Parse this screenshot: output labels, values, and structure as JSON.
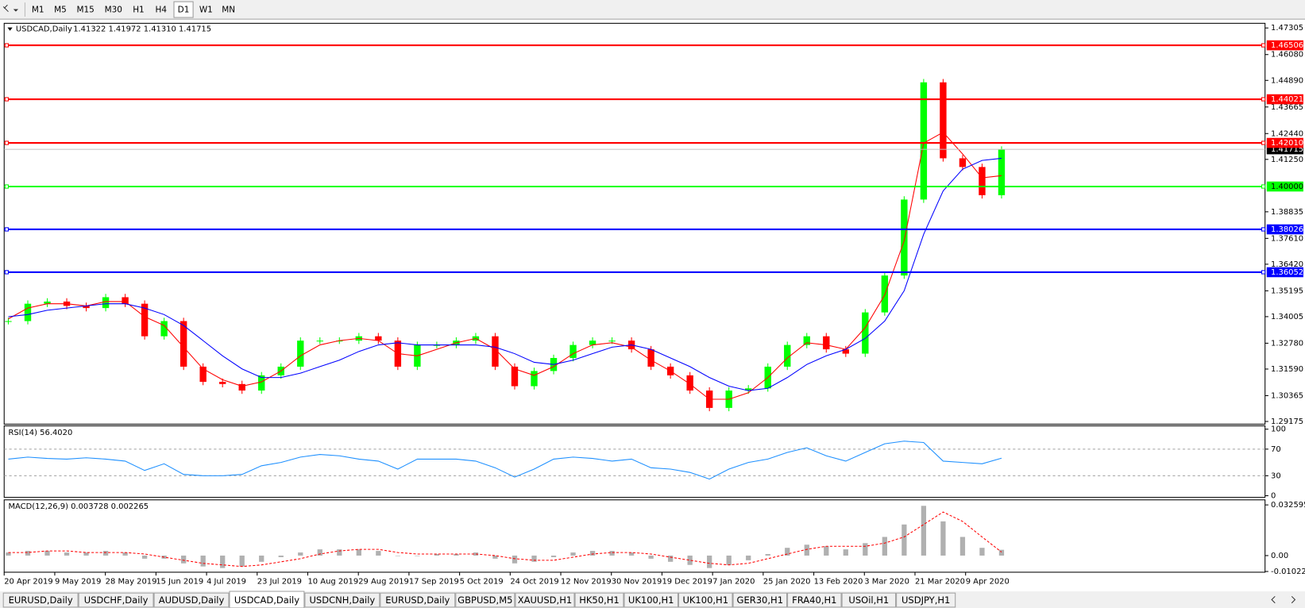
{
  "toolbar": {
    "timeframes": [
      "M1",
      "M5",
      "M15",
      "M30",
      "H1",
      "H4",
      "D1",
      "W1",
      "MN"
    ],
    "active_timeframe": "D1"
  },
  "tabs": {
    "items": [
      "EURUSD,Daily",
      "USDCHF,Daily",
      "AUDUSD,Daily",
      "USDCAD,Daily",
      "USDCNH,Daily",
      "EURUSD,Daily",
      "GBPUSD,M5",
      "XAUUSD,H1",
      "HK50,H1",
      "UK100,H1",
      "UK100,H1",
      "GER30,H1",
      "FRA40,H1",
      "USOil,H1",
      "USDJPY,H1"
    ],
    "active": "USDCAD,Daily"
  },
  "chart_data": [
    {
      "type": "candlestick",
      "symbol": "USDCAD,Daily",
      "ohlc": "1.41322 1.41972 1.41310 1.41715",
      "x_labels": [
        "20 Apr 2019",
        "9 May 2019",
        "28 May 2019",
        "15 Jun 2019",
        "4 Jul 2019",
        "23 Jul 2019",
        "10 Aug 2019",
        "29 Aug 2019",
        "17 Sep 2019",
        "5 Oct 2019",
        "24 Oct 2019",
        "12 Nov 2019",
        "30 Nov 2019",
        "19 Dec 2019",
        "7 Jan 2020",
        "25 Jan 2020",
        "13 Feb 2020",
        "3 Mar 2020",
        "21 Mar 2020",
        "9 Apr 2020"
      ],
      "closes": [
        1.338,
        1.346,
        1.347,
        1.345,
        1.344,
        1.349,
        1.346,
        1.331,
        1.338,
        1.317,
        1.31,
        1.309,
        1.306,
        1.313,
        1.317,
        1.329,
        1.329,
        1.329,
        1.331,
        1.329,
        1.317,
        1.327,
        1.327,
        1.329,
        1.331,
        1.317,
        1.308,
        1.315,
        1.321,
        1.327,
        1.329,
        1.329,
        1.325,
        1.317,
        1.313,
        1.306,
        1.298,
        1.306,
        1.307,
        1.317,
        1.327,
        1.331,
        1.325,
        1.323,
        1.342,
        1.359,
        1.394,
        1.448,
        1.413,
        1.409,
        1.396,
        1.417
      ],
      "up_color": "#00ff00",
      "down_color": "#ff0000",
      "series": [
        {
          "color": "#ff0000",
          "values": [
            1.339,
            1.344,
            1.346,
            1.346,
            1.345,
            1.347,
            1.347,
            1.34,
            1.336,
            1.326,
            1.316,
            1.311,
            1.308,
            1.31,
            1.315,
            1.322,
            1.327,
            1.329,
            1.33,
            1.329,
            1.323,
            1.322,
            1.325,
            1.328,
            1.33,
            1.325,
            1.316,
            1.313,
            1.317,
            1.323,
            1.327,
            1.328,
            1.326,
            1.32,
            1.315,
            1.309,
            1.302,
            1.302,
            1.305,
            1.312,
            1.321,
            1.328,
            1.327,
            1.325,
            1.335,
            1.35,
            1.375,
            1.42,
            1.425,
            1.415,
            1.404,
            1.405
          ]
        },
        {
          "color": "#0000ff",
          "values": [
            1.34,
            1.341,
            1.343,
            1.344,
            1.345,
            1.346,
            1.346,
            1.344,
            1.341,
            1.336,
            1.329,
            1.322,
            1.316,
            1.312,
            1.312,
            1.314,
            1.317,
            1.32,
            1.324,
            1.327,
            1.328,
            1.327,
            1.327,
            1.327,
            1.327,
            1.326,
            1.323,
            1.319,
            1.318,
            1.32,
            1.323,
            1.326,
            1.327,
            1.325,
            1.321,
            1.317,
            1.312,
            1.308,
            1.306,
            1.307,
            1.312,
            1.318,
            1.322,
            1.325,
            1.33,
            1.338,
            1.352,
            1.378,
            1.398,
            1.408,
            1.412,
            1.413
          ]
        }
      ],
      "ylim": [
        1.2905,
        1.4752
      ],
      "yticks": [
        1.47305,
        {
          "value": 1.4608,
          "label": "1.46080"
        },
        {
          "value": 1.4489,
          "label": "1.44890"
        },
        1.43665,
        {
          "value": 1.4244,
          "label": "1.42440"
        },
        {
          "value": 1.4125,
          "label": "1.41250"
        },
        1.38835,
        {
          "value": 1.3761,
          "label": "1.37610"
        },
        {
          "value": 1.3642,
          "label": "1.36420"
        },
        1.35195,
        1.34005,
        {
          "value": 1.3278,
          "label": "1.32780"
        },
        {
          "value": 1.3159,
          "label": "1.31590"
        },
        1.30365,
        1.29175
      ],
      "levels": [
        {
          "value": 1.46506,
          "color": "#ff0000"
        },
        {
          "value": 1.44021,
          "color": "#ff0000"
        },
        {
          "value": 1.4201,
          "label": "1.42010",
          "color": "#ff0000"
        },
        {
          "value": 1.4,
          "label": "1.40000",
          "color": "#00ff00"
        },
        {
          "value": 1.38026,
          "color": "#0000ff"
        },
        {
          "value": 1.36052,
          "color": "#0000ff"
        }
      ],
      "last_price": 1.41715
    },
    {
      "type": "line",
      "title": "RSI(14) 56.4020",
      "color": "#1e90ff",
      "values": [
        55,
        58,
        56,
        55,
        57,
        55,
        52,
        38,
        48,
        32,
        30,
        30,
        32,
        45,
        50,
        58,
        62,
        60,
        55,
        52,
        40,
        55,
        55,
        55,
        52,
        42,
        28,
        40,
        55,
        58,
        56,
        52,
        55,
        42,
        40,
        35,
        25,
        40,
        50,
        55,
        65,
        72,
        60,
        52,
        65,
        78,
        82,
        80,
        52,
        50,
        48,
        56.402
      ],
      "ylim": [
        0,
        100
      ],
      "yticks": [
        100,
        70,
        30,
        0
      ],
      "levels": [
        70,
        30
      ]
    },
    {
      "type": "macd",
      "title": "MACD(12,26,9) 0.003728 0.002265",
      "color": "#b0b0b0",
      "signal_color": "#ff0000",
      "values": [
        0.002,
        0.003,
        0.003,
        0.002,
        0.002,
        0.003,
        0.002,
        -0.002,
        -0.002,
        -0.005,
        -0.007,
        -0.008,
        -0.007,
        -0.004,
        -0.001,
        0.002,
        0.004,
        0.004,
        0.004,
        0.003,
        0,
        0,
        0.001,
        0.001,
        0.002,
        -0.002,
        -0.005,
        -0.004,
        -0.001,
        0.002,
        0.003,
        0.003,
        0.002,
        -0.002,
        -0.004,
        -0.006,
        -0.008,
        -0.006,
        -0.003,
        0.001,
        0.005,
        0.007,
        0.006,
        0.004,
        0.008,
        0.012,
        0.02,
        0.032,
        0.022,
        0.012,
        0.005,
        0.003728
      ],
      "signal": [
        0.002,
        0.002,
        0.003,
        0.003,
        0.002,
        0.002,
        0.002,
        0.001,
        -0.001,
        -0.003,
        -0.005,
        -0.006,
        -0.007,
        -0.006,
        -0.004,
        -0.002,
        0.001,
        0.003,
        0.004,
        0.004,
        0.002,
        0.001,
        0.001,
        0.001,
        0.001,
        0,
        -0.002,
        -0.003,
        -0.003,
        -0.001,
        0.001,
        0.002,
        0.002,
        0.001,
        -0.001,
        -0.003,
        -0.005,
        -0.006,
        -0.005,
        -0.002,
        0.001,
        0.004,
        0.006,
        0.006,
        0.006,
        0.008,
        0.012,
        0.02,
        0.028,
        0.022,
        0.012,
        0.002265
      ],
      "ylim": [
        -0.0107,
        0.0353
      ],
      "yticks": [
        0.032595,
        {
          "value": 0,
          "label": "0.00"
        },
        -0.010227
      ]
    }
  ]
}
